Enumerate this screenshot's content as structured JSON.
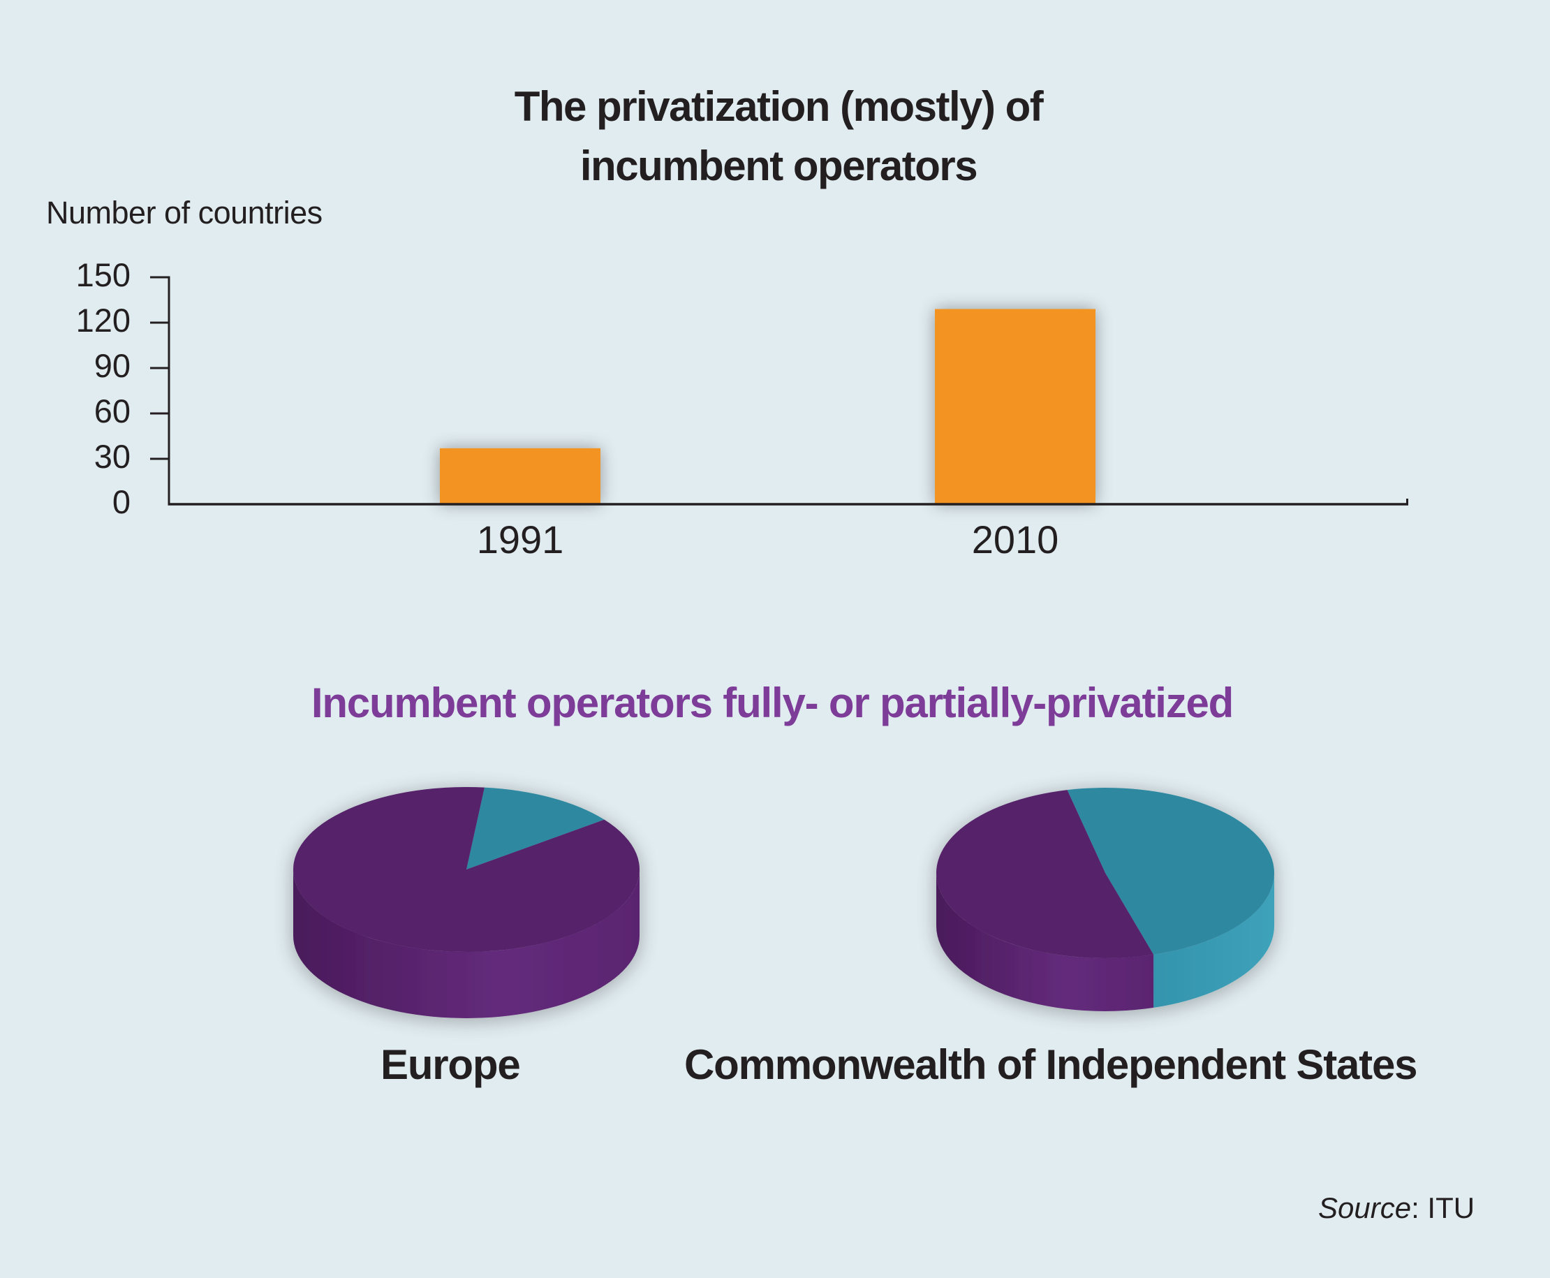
{
  "colors": {
    "background": "#e1ecf0",
    "bar": "#f39320",
    "axis": "#231f20",
    "pie_title": "#7d3c98",
    "purple_top": "#56226a",
    "purple_side_dark": "#4a1a5b",
    "purple_side_light": "#642b7c",
    "teal_top": "#2f88a0",
    "teal_side_dark": "#3494ad",
    "teal_side_light": "#3ca0b8"
  },
  "chart_data": [
    {
      "type": "bar",
      "title": "The privatization (mostly) of incumbent operators",
      "title_lines": [
        "The privatization (mostly) of",
        "incumbent operators"
      ],
      "xlabel": "",
      "ylabel": "Number of countries",
      "categories": [
        "1991",
        "2010"
      ],
      "values": [
        37,
        129
      ],
      "ylim": [
        0,
        150
      ],
      "yticks": [
        "0",
        "30",
        "60",
        "90",
        "120",
        "150"
      ],
      "grid": false,
      "legend": null
    },
    {
      "type": "pie",
      "title": "Incumbent operators fully- or partially-privatized",
      "pies": [
        {
          "name": "Europe",
          "slices": [
            {
              "name": "purple",
              "fraction": 0.87,
              "color_key": "purple"
            },
            {
              "name": "teal",
              "fraction": 0.13,
              "color_key": "teal"
            }
          ]
        },
        {
          "name": "Commonwealth of Independent States",
          "slices": [
            {
              "name": "purple",
              "fraction": 0.51,
              "color_key": "purple"
            },
            {
              "name": "teal",
              "fraction": 0.49,
              "color_key": "teal"
            }
          ]
        }
      ],
      "legend": null
    }
  ],
  "source": {
    "prefix": "Source",
    "suffix": ": ITU"
  }
}
